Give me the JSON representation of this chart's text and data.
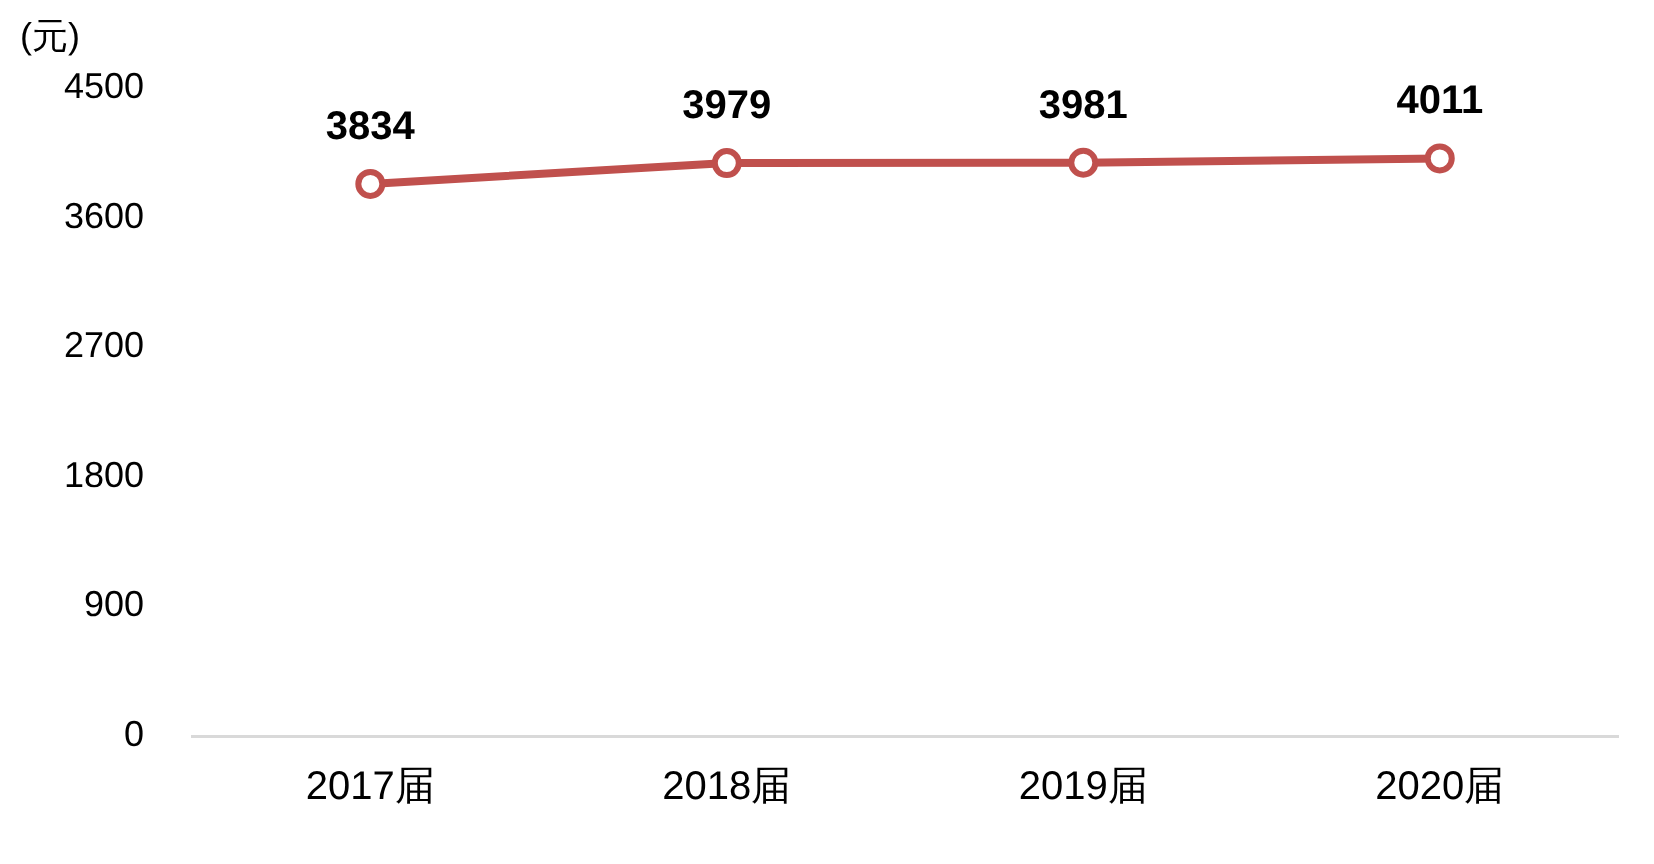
{
  "chart_data": {
    "type": "line",
    "ylabel": "(元)",
    "categories": [
      "2017届",
      "2018届",
      "2019届",
      "2020届"
    ],
    "series": [
      {
        "color": "#c0504d",
        "values": [
          3834,
          3979,
          3981,
          4011
        ]
      }
    ],
    "ylim": [
      0,
      4500
    ],
    "yticks": [
      0,
      900,
      1800,
      2700,
      3600,
      4500
    ],
    "grid": false,
    "legend": false,
    "marker": "circle",
    "line_style": "solid",
    "data_labels": true
  }
}
